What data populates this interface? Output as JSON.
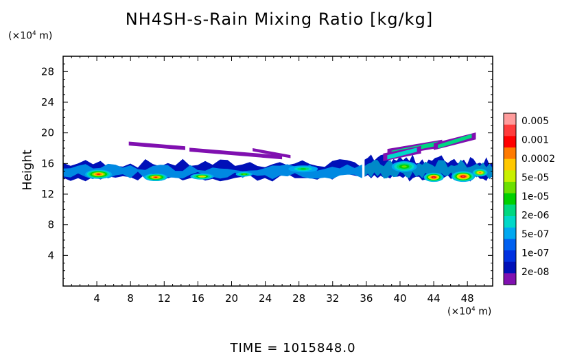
{
  "chart_data": {
    "type": "heatmap",
    "title": "NH4SH-s-Rain Mixing Ratio [kg/kg]",
    "ylabel": "Height",
    "y_unit": {
      "prefix": "(×10",
      "exp": "4",
      "suffix": " m)"
    },
    "x_unit": {
      "prefix": "(×10",
      "exp": "4",
      "suffix": " m)"
    },
    "xlim": [
      0,
      51
    ],
    "ylim": [
      0,
      30
    ],
    "x_ticks": [
      4,
      8,
      12,
      16,
      20,
      24,
      28,
      32,
      36,
      40,
      44,
      48
    ],
    "y_ticks": [
      4,
      8,
      12,
      16,
      20,
      24,
      28
    ],
    "colorbar": {
      "labels": [
        "0.005",
        "0.001",
        "0.0002",
        "5e-05",
        "1e-05",
        "2e-06",
        "5e-07",
        "1e-07",
        "2e-08"
      ],
      "colors": [
        "#ff9c9c",
        "#ff3c3c",
        "#ff0000",
        "#ff7a00",
        "#ffc800",
        "#c8f000",
        "#6ce000",
        "#00d000",
        "#00d880",
        "#00d8c8",
        "#00a8f0",
        "#0060f0",
        "#0030e0",
        "#0010b8",
        "#8010b0"
      ]
    },
    "features": [
      {
        "kind": "band",
        "x": [
          0,
          35.5
        ],
        "y_bottom": [
          13.6,
          14.7
        ],
        "y_top": [
          15.4,
          16.6
        ],
        "level": 0.35
      },
      {
        "kind": "band",
        "x": [
          35.8,
          51
        ],
        "y_bottom": [
          13.6,
          14.6
        ],
        "y_top": [
          15.8,
          17.2
        ],
        "level": 0.45
      },
      {
        "kind": "blob",
        "x": 4.2,
        "y": 14.6,
        "w": 3.2,
        "h": 1.2,
        "level": 0.85
      },
      {
        "kind": "blob",
        "x": 11.0,
        "y": 14.2,
        "w": 2.8,
        "h": 1.0,
        "level": 0.85
      },
      {
        "kind": "blob",
        "x": 16.5,
        "y": 14.3,
        "w": 2.8,
        "h": 0.8,
        "level": 0.7
      },
      {
        "kind": "blob",
        "x": 21.5,
        "y": 14.6,
        "w": 2.0,
        "h": 0.6,
        "level": 0.55
      },
      {
        "kind": "blob",
        "x": 28.5,
        "y": 15.3,
        "w": 3.5,
        "h": 0.9,
        "level": 0.5
      },
      {
        "kind": "blob",
        "x": 40.5,
        "y": 15.6,
        "w": 3.0,
        "h": 1.4,
        "level": 0.6
      },
      {
        "kind": "blob",
        "x": 44.0,
        "y": 14.2,
        "w": 2.4,
        "h": 1.2,
        "level": 0.95
      },
      {
        "kind": "blob",
        "x": 47.5,
        "y": 14.3,
        "w": 2.8,
        "h": 1.4,
        "level": 0.95
      },
      {
        "kind": "blob",
        "x": 49.5,
        "y": 14.8,
        "w": 1.8,
        "h": 1.0,
        "level": 0.8
      },
      {
        "kind": "plume",
        "x": [
          7.8,
          14.5
        ],
        "y": [
          18.6,
          18.0
        ],
        "h": 0.25,
        "level": 0.05
      },
      {
        "kind": "plume",
        "x": [
          15.0,
          26.0
        ],
        "y": [
          17.8,
          16.8
        ],
        "h": 0.25,
        "level": 0.1
      },
      {
        "kind": "plume",
        "x": [
          22.5,
          27.0
        ],
        "y": [
          17.8,
          16.9
        ],
        "h": 0.2,
        "level": 0.1
      },
      {
        "kind": "plume",
        "x": [
          38.5,
          45.0
        ],
        "y": [
          17.4,
          18.6
        ],
        "h": 0.5,
        "level": 0.4
      },
      {
        "kind": "plume",
        "x": [
          44.0,
          49.0
        ],
        "y": [
          18.2,
          19.6
        ],
        "h": 0.45,
        "level": 0.45
      },
      {
        "kind": "plume",
        "x": [
          38.0,
          42.5
        ],
        "y": [
          16.8,
          17.8
        ],
        "h": 0.5,
        "level": 0.35
      }
    ]
  },
  "time_label": "TIME = 1015848.0"
}
